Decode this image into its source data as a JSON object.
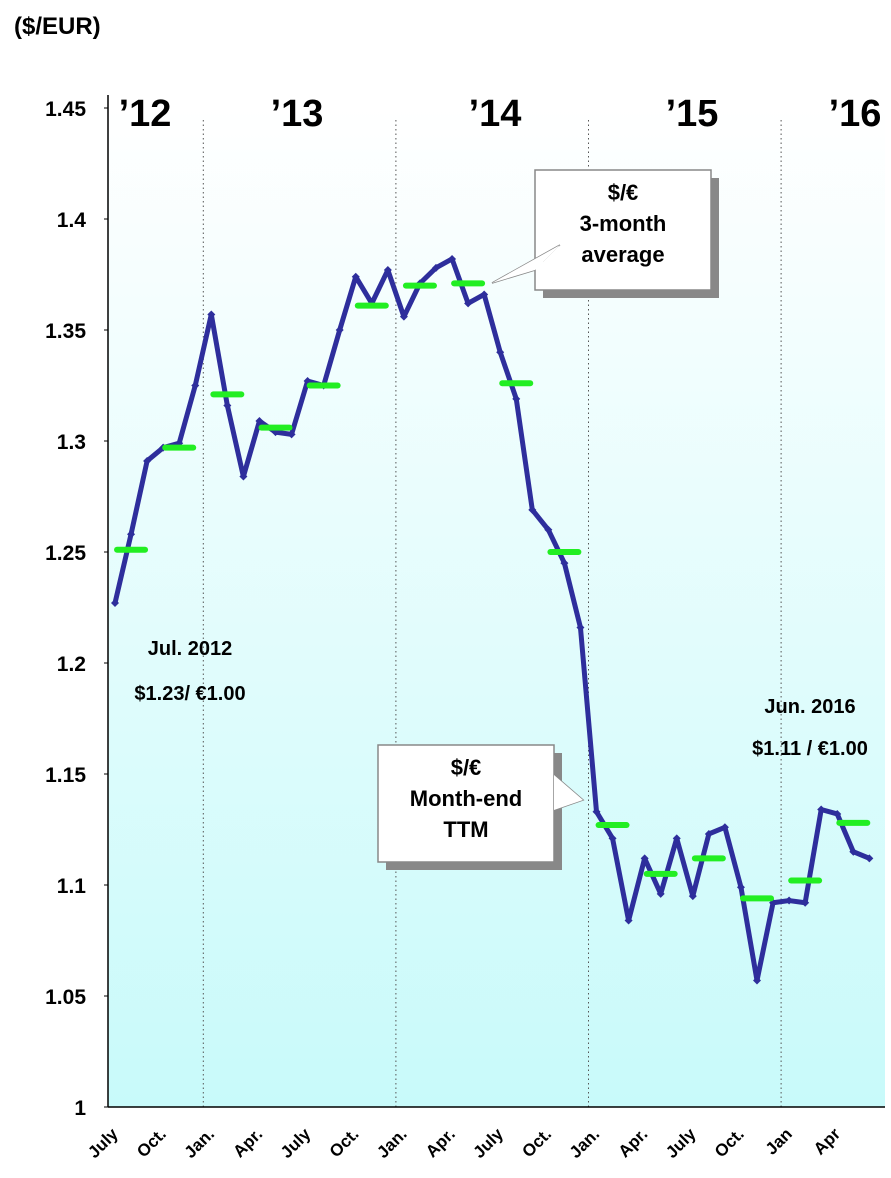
{
  "chart_data": {
    "type": "line",
    "axis_label": "($/EUR)",
    "years": [
      "’12",
      "’13",
      "’14",
      "’15",
      "’16"
    ],
    "x": [
      "July",
      null,
      null,
      "Oct.",
      null,
      null,
      "Jan.",
      null,
      null,
      "Apr.",
      null,
      null,
      "July",
      null,
      null,
      "Oct.",
      null,
      null,
      "Jan.",
      null,
      null,
      "Apr.",
      null,
      null,
      "July",
      null,
      null,
      "Oct.",
      null,
      null,
      "Jan.",
      null,
      null,
      "Apr.",
      null,
      null,
      "July",
      null,
      null,
      "Oct.",
      null,
      null,
      "Jan",
      null,
      null,
      "Apr",
      null,
      null
    ],
    "series": [
      {
        "name": [
          "$/€",
          "Month-end",
          "TTM"
        ],
        "color": "#2e2e9c",
        "values": [
          1.227,
          1.258,
          1.291,
          1.297,
          1.299,
          1.325,
          1.357,
          1.316,
          1.284,
          1.309,
          1.304,
          1.303,
          1.327,
          1.325,
          1.35,
          1.374,
          1.362,
          1.377,
          1.356,
          1.371,
          1.378,
          1.382,
          1.362,
          1.366,
          1.34,
          1.319,
          1.269,
          1.26,
          1.245,
          1.216,
          1.133,
          1.121,
          1.084,
          1.112,
          1.096,
          1.121,
          1.095,
          1.123,
          1.126,
          1.099,
          1.057,
          1.092,
          1.093,
          1.092,
          1.134,
          1.132,
          1.115,
          1.112
        ]
      },
      {
        "name": [
          "$/€",
          "3-month",
          "average"
        ],
        "color": "#22ee22",
        "style": "dash",
        "values": [
          null,
          1.251,
          null,
          null,
          1.297,
          null,
          null,
          1.321,
          null,
          null,
          1.306,
          null,
          null,
          1.325,
          null,
          null,
          1.361,
          null,
          null,
          1.37,
          null,
          null,
          1.371,
          null,
          null,
          1.326,
          null,
          null,
          1.25,
          null,
          null,
          1.127,
          null,
          null,
          1.105,
          null,
          null,
          1.112,
          null,
          null,
          1.094,
          null,
          null,
          1.102,
          null,
          null,
          1.128,
          null
        ]
      }
    ],
    "annotations": [
      {
        "lines": [
          "Jul. 2012",
          "$1.23/ €1.00"
        ]
      },
      {
        "lines": [
          "Jun. 2016",
          "$1.11 / €1.00"
        ]
      }
    ],
    "ylim": [
      1,
      1.45
    ],
    "yticks": [
      1,
      1.05,
      1.1,
      1.15,
      1.2,
      1.25,
      1.3,
      1.35,
      1.4,
      1.45
    ]
  }
}
